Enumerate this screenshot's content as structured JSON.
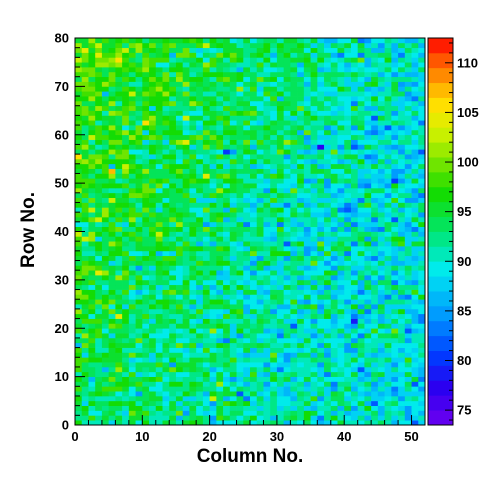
{
  "chart_data": {
    "type": "heatmap",
    "xlabel": "Column No.",
    "ylabel": "Row No.",
    "xlim": [
      0,
      52
    ],
    "ylim": [
      0,
      80
    ],
    "x_bins": 52,
    "y_bins": 80,
    "x_ticks": [
      0,
      10,
      20,
      30,
      40,
      50
    ],
    "y_ticks": [
      0,
      10,
      20,
      30,
      40,
      50,
      60,
      70,
      80
    ],
    "z_range": [
      73.5,
      112.5
    ],
    "colorbar_ticks": [
      75,
      80,
      85,
      90,
      95,
      100,
      105,
      110
    ],
    "trend": {
      "description": "cell values mostly between 85 and 100; higher (about 97-102) near the top-left, lower (about 87-90) toward the right and center-right",
      "top_left_mean": 99,
      "bottom_left_mean": 94,
      "right_mean": 89,
      "center_right_mean": 88,
      "noise_sd": 3.2
    },
    "grid": false,
    "colorbar_position": "right"
  }
}
